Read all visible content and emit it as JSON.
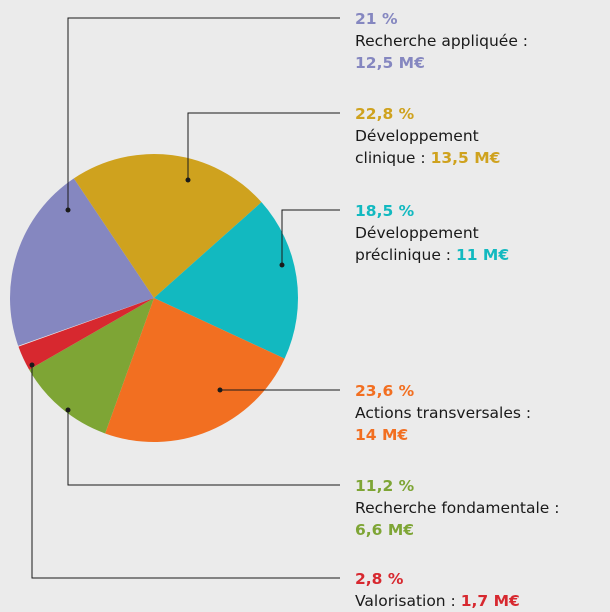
{
  "chart_data": {
    "type": "pie",
    "categories": [
      "Recherche appliquée :",
      "Développement clinique :",
      "Développement préclinique :",
      "Actions transversales :",
      "Recherche fondamentale :",
      "Valorisation :"
    ],
    "values": [
      21,
      22.8,
      18.5,
      23.6,
      11.2,
      2.8
    ],
    "value_labels": [
      "21 %",
      "22,8 %",
      "18,5 %",
      "23,6 %",
      "11,2 %",
      "2,8 %"
    ],
    "amount_labels": [
      "12,5 M€",
      "13,5 M€",
      "11 M€",
      "14 M€",
      "6,6 M€",
      "1,7 M€"
    ],
    "colors": [
      "#8587c0",
      "#cfa21e",
      "#12b9c0",
      "#f26f21",
      "#7ea535",
      "#d7282f"
    ]
  }
}
